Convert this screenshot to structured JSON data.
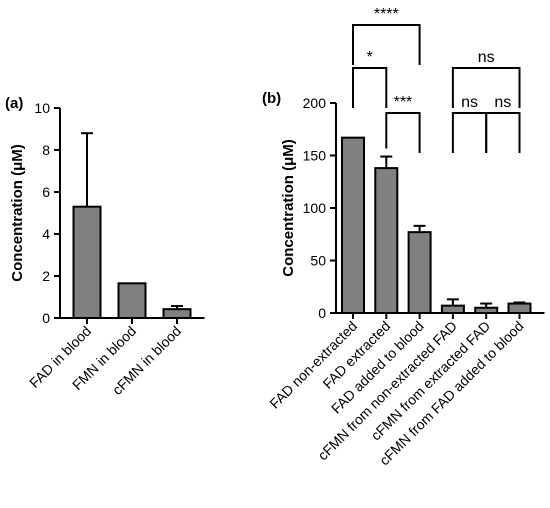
{
  "chart_data": [
    {
      "panel": "(a)",
      "type": "bar",
      "categories": [
        "FAD in blood",
        "FMN in blood",
        "cFMN in blood"
      ],
      "values": [
        5.3,
        1.65,
        0.42
      ],
      "errors": [
        3.5,
        0.0,
        0.15
      ],
      "ylabel": "Concentration (μM)",
      "ylim": [
        0,
        10
      ],
      "yticks": [
        0,
        2,
        4,
        6,
        8,
        10
      ],
      "bar_color": "#808080",
      "grid": false
    },
    {
      "panel": "(b)",
      "type": "bar",
      "categories": [
        "FAD non-extracted",
        "FAD extracted",
        "FAD added to blood",
        "cFMN from non-extracted FAD",
        "cFMN from extracted FAD",
        "cFMN from FAD added to blood"
      ],
      "values": [
        167,
        138,
        77,
        7,
        5,
        9
      ],
      "errors": [
        0,
        11,
        6,
        6,
        4,
        1
      ],
      "ylabel": "Concentration (μM)",
      "ylim": [
        0,
        200
      ],
      "yticks": [
        0,
        50,
        100,
        150,
        200
      ],
      "bar_color": "#808080",
      "grid": false,
      "significance": [
        {
          "from": 0,
          "to": 1,
          "label": "*"
        },
        {
          "from": 0,
          "to": 2,
          "label": "****"
        },
        {
          "from": 1,
          "to": 2,
          "label": "***"
        },
        {
          "from": 3,
          "to": 4,
          "label": "ns"
        },
        {
          "from": 4,
          "to": 5,
          "label": "ns"
        },
        {
          "from": 3,
          "to": 5,
          "label": "ns"
        }
      ]
    }
  ]
}
